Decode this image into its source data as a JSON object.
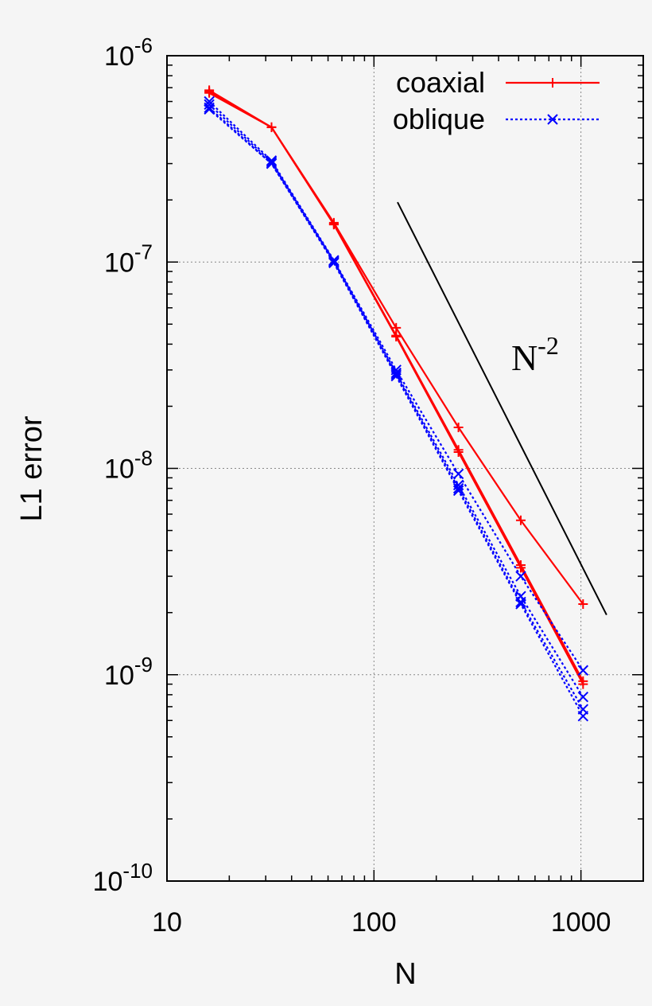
{
  "chart_data": {
    "type": "line",
    "xlabel": "N",
    "ylabel": "L1 error",
    "x_scale": "log",
    "y_scale": "log",
    "xlim": [
      10,
      2000
    ],
    "ylim": [
      1e-10,
      1e-06
    ],
    "grid": true,
    "legend_position": "top-right",
    "x_ticks": [
      {
        "value": 10,
        "label": "10"
      },
      {
        "value": 100,
        "label": "100"
      },
      {
        "value": 1000,
        "label": "1000"
      }
    ],
    "y_ticks": [
      {
        "value": 1e-10,
        "base": "10",
        "exp": "-10"
      },
      {
        "value": 1e-09,
        "base": "10",
        "exp": "-9"
      },
      {
        "value": 1e-08,
        "base": "10",
        "exp": "-8"
      },
      {
        "value": 1e-07,
        "base": "10",
        "exp": "-7"
      },
      {
        "value": 1e-06,
        "base": "10",
        "exp": "-6"
      }
    ],
    "legend": [
      {
        "label": "coaxial",
        "color": "#ff0000",
        "marker": "plus",
        "dash": "solid"
      },
      {
        "label": "oblique",
        "color": "#0000ff",
        "marker": "cross",
        "dash": "dotted"
      }
    ],
    "series": [
      {
        "name": "coaxial",
        "color": "#ff0000",
        "marker": "plus",
        "dash": "solid",
        "x": [
          16,
          32,
          64,
          128,
          256,
          512,
          1024
        ],
        "y": [
          6.8e-07,
          4.5e-07,
          1.55e-07,
          4.8e-08,
          1.58e-08,
          5.6e-09,
          2.2e-09
        ]
      },
      {
        "name": "",
        "color": "#ff0000",
        "marker": "plus",
        "dash": "solid",
        "x": [
          16,
          32,
          64,
          128,
          256,
          512,
          1024
        ],
        "y": [
          6.7e-07,
          4.5e-07,
          1.53e-07,
          4.4e-08,
          1.23e-08,
          3.4e-09,
          9.3e-10
        ]
      },
      {
        "name": "",
        "color": "#ff0000",
        "marker": "plus",
        "dash": "solid",
        "x": [
          16,
          32,
          64,
          128,
          256,
          512,
          1024
        ],
        "y": [
          6.6e-07,
          4.5e-07,
          1.52e-07,
          4.35e-08,
          1.2e-08,
          3.3e-09,
          9e-10
        ]
      },
      {
        "name": "oblique",
        "color": "#0000ff",
        "marker": "cross",
        "dash": "dotted",
        "x": [
          16,
          32,
          64,
          128,
          256,
          512,
          1024
        ],
        "y": [
          6e-07,
          3.1e-07,
          1.02e-07,
          3e-08,
          9.4e-09,
          3e-09,
          1.05e-09
        ]
      },
      {
        "name": "",
        "color": "#0000ff",
        "marker": "cross",
        "dash": "dotted",
        "x": [
          16,
          32,
          64,
          128,
          256,
          512,
          1024
        ],
        "y": [
          5.8e-07,
          3.05e-07,
          1.01e-07,
          2.9e-08,
          8.3e-09,
          2.4e-09,
          7.8e-10
        ]
      },
      {
        "name": "",
        "color": "#0000ff",
        "marker": "cross",
        "dash": "dotted",
        "x": [
          16,
          32,
          64,
          128,
          256,
          512,
          1024
        ],
        "y": [
          5.6e-07,
          3e-07,
          1e-07,
          2.85e-08,
          8e-09,
          2.25e-09,
          6.8e-10
        ]
      },
      {
        "name": "",
        "color": "#0000ff",
        "marker": "cross",
        "dash": "dotted",
        "x": [
          16,
          32,
          64,
          128,
          256,
          512,
          1024
        ],
        "y": [
          5.5e-07,
          3e-07,
          9.9e-08,
          2.8e-08,
          7.8e-09,
          2.2e-09,
          6.3e-10
        ]
      }
    ],
    "reference_line": {
      "color": "#000000",
      "x": [
        130,
        1330
      ],
      "y": [
        1.95e-07,
        1.95e-09
      ],
      "label_base": "N",
      "label_exp": "-2",
      "label_at": [
        600,
        3e-08
      ]
    }
  }
}
